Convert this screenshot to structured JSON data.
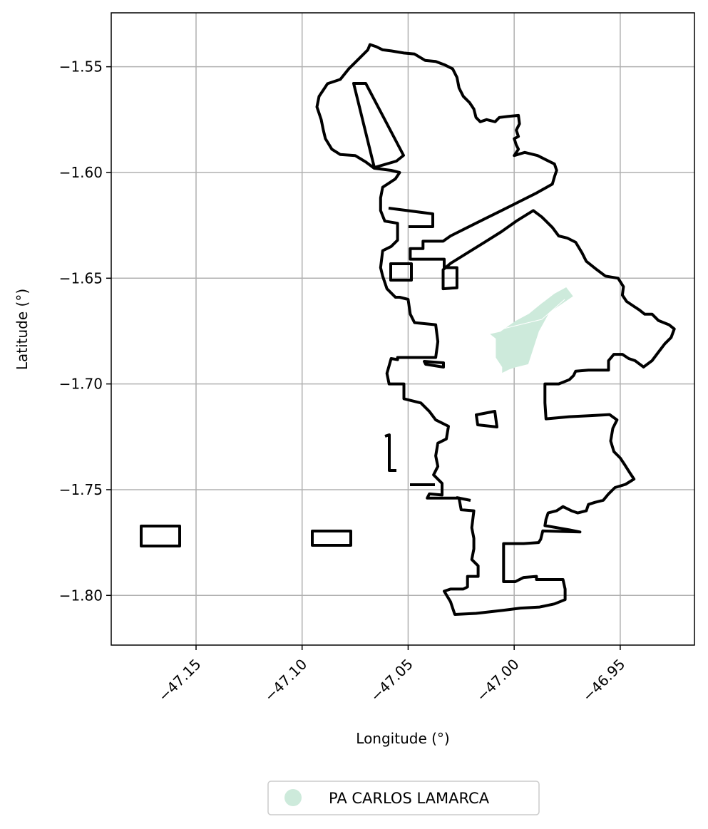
{
  "map": {
    "xlabel": "Longitude (°)",
    "ylabel": "Latitude (°)",
    "xlim": [
      -47.19,
      -46.915
    ],
    "ylim": [
      -1.8235,
      -1.5245
    ],
    "grid": true,
    "x_ticks": [
      {
        "value": -47.15,
        "label": "−47.15"
      },
      {
        "value": -47.1,
        "label": "−47.10"
      },
      {
        "value": -47.05,
        "label": "−47.05"
      },
      {
        "value": -47.0,
        "label": "−47.00"
      },
      {
        "value": -46.95,
        "label": "−46.95"
      }
    ],
    "y_ticks": [
      {
        "value": -1.55,
        "label": "−1.55"
      },
      {
        "value": -1.6,
        "label": "−1.60"
      },
      {
        "value": -1.65,
        "label": "−1.65"
      },
      {
        "value": -1.7,
        "label": "−1.70"
      },
      {
        "value": -1.75,
        "label": "−1.75"
      },
      {
        "value": -1.8,
        "label": "−1.80"
      }
    ],
    "legend": {
      "placement": "bottom-center",
      "entries": [
        {
          "label": "PA CARLOS LAMARCA",
          "color": "#cdeadb"
        }
      ]
    },
    "colors": {
      "boundary": "#000000",
      "settlement": "#cdeadb",
      "grid": "#b0b0b0"
    },
    "boundary": [
      [
        -47.068,
        -1.5395
      ],
      [
        -47.065,
        -1.5405
      ],
      [
        -47.062,
        -1.542
      ],
      [
        -47.058,
        -1.5425
      ],
      [
        -47.052,
        -1.5435
      ],
      [
        -47.047,
        -1.544
      ],
      [
        -47.042,
        -1.547
      ],
      [
        -47.037,
        -1.5475
      ],
      [
        -47.033,
        -1.549
      ],
      [
        -47.029,
        -1.551
      ],
      [
        -47.027,
        -1.555
      ],
      [
        -47.026,
        -1.56
      ],
      [
        -47.024,
        -1.564
      ],
      [
        -47.021,
        -1.567
      ],
      [
        -47.019,
        -1.57
      ],
      [
        -47.018,
        -1.574
      ],
      [
        -47.016,
        -1.576
      ],
      [
        -47.013,
        -1.575
      ],
      [
        -47.009,
        -1.576
      ],
      [
        -47.007,
        -1.574
      ],
      [
        -47.003,
        -1.5735
      ],
      [
        -46.998,
        -1.573
      ],
      [
        -46.9975,
        -1.577
      ],
      [
        -46.999,
        -1.58
      ],
      [
        -46.998,
        -1.583
      ],
      [
        -47.0,
        -1.584
      ],
      [
        -46.999,
        -1.587
      ],
      [
        -46.998,
        -1.589
      ],
      [
        -47.0,
        -1.592
      ],
      [
        -46.995,
        -1.5905
      ],
      [
        -46.989,
        -1.592
      ],
      [
        -46.985,
        -1.594
      ],
      [
        -46.981,
        -1.596
      ],
      [
        -46.98,
        -1.599
      ],
      [
        -46.981,
        -1.602
      ],
      [
        -46.982,
        -1.6055
      ],
      [
        -46.99,
        -1.61
      ],
      [
        -46.998,
        -1.614
      ],
      [
        -47.006,
        -1.618
      ],
      [
        -47.014,
        -1.622
      ],
      [
        -47.022,
        -1.626
      ],
      [
        -47.03,
        -1.63
      ],
      [
        -47.0335,
        -1.6325
      ],
      [
        -47.043,
        -1.6325
      ],
      [
        -47.043,
        -1.636
      ],
      [
        -47.049,
        -1.636
      ],
      [
        -47.049,
        -1.641
      ],
      [
        -47.033,
        -1.641
      ],
      [
        -47.033,
        -1.645
      ],
      [
        -47.027,
        -1.645
      ],
      [
        -47.027,
        -1.6545
      ],
      [
        -47.0335,
        -1.655
      ],
      [
        -47.0335,
        -1.646
      ],
      [
        -47.03,
        -1.643
      ],
      [
        -47.022,
        -1.638
      ],
      [
        -47.014,
        -1.633
      ],
      [
        -47.006,
        -1.628
      ],
      [
        -46.999,
        -1.623
      ],
      [
        -46.991,
        -1.618
      ],
      [
        -46.987,
        -1.621
      ],
      [
        -46.985,
        -1.623
      ],
      [
        -46.982,
        -1.626
      ],
      [
        -46.979,
        -1.63
      ],
      [
        -46.975,
        -1.631
      ],
      [
        -46.971,
        -1.633
      ],
      [
        -46.968,
        -1.638
      ],
      [
        -46.966,
        -1.642
      ],
      [
        -46.961,
        -1.646
      ],
      [
        -46.957,
        -1.649
      ],
      [
        -46.951,
        -1.65
      ],
      [
        -46.9485,
        -1.654
      ],
      [
        -46.949,
        -1.658
      ],
      [
        -46.947,
        -1.661
      ],
      [
        -46.944,
        -1.663
      ],
      [
        -46.941,
        -1.665
      ],
      [
        -46.9385,
        -1.667
      ],
      [
        -46.935,
        -1.667
      ],
      [
        -46.932,
        -1.67
      ],
      [
        -46.927,
        -1.672
      ],
      [
        -46.9245,
        -1.674
      ],
      [
        -46.926,
        -1.678
      ],
      [
        -46.929,
        -1.681
      ],
      [
        -46.932,
        -1.685
      ],
      [
        -46.935,
        -1.689
      ],
      [
        -46.939,
        -1.692
      ],
      [
        -46.943,
        -1.689
      ],
      [
        -46.946,
        -1.688
      ],
      [
        -46.949,
        -1.686
      ],
      [
        -46.953,
        -1.686
      ],
      [
        -46.9555,
        -1.689
      ],
      [
        -46.9555,
        -1.6935
      ],
      [
        -46.965,
        -1.6935
      ],
      [
        -46.971,
        -1.694
      ],
      [
        -46.972,
        -1.696
      ],
      [
        -46.974,
        -1.698
      ],
      [
        -46.979,
        -1.7
      ],
      [
        -46.9855,
        -1.7
      ],
      [
        -46.9855,
        -1.709
      ],
      [
        -46.985,
        -1.7165
      ],
      [
        -46.974,
        -1.7155
      ],
      [
        -46.964,
        -1.715
      ],
      [
        -46.955,
        -1.7145
      ],
      [
        -46.9515,
        -1.717
      ],
      [
        -46.9535,
        -1.721
      ],
      [
        -46.9545,
        -1.727
      ],
      [
        -46.953,
        -1.732
      ],
      [
        -46.95,
        -1.735
      ],
      [
        -46.948,
        -1.738
      ],
      [
        -46.9455,
        -1.742
      ],
      [
        -46.9435,
        -1.745
      ],
      [
        -46.9475,
        -1.7475
      ],
      [
        -46.9525,
        -1.749
      ],
      [
        -46.9555,
        -1.752
      ],
      [
        -46.958,
        -1.755
      ],
      [
        -46.962,
        -1.756
      ],
      [
        -46.965,
        -1.757
      ],
      [
        -46.966,
        -1.76
      ],
      [
        -46.97,
        -1.761
      ],
      [
        -46.973,
        -1.76
      ],
      [
        -46.977,
        -1.758
      ],
      [
        -46.98,
        -1.76
      ],
      [
        -46.984,
        -1.761
      ],
      [
        -46.985,
        -1.764
      ],
      [
        -46.9855,
        -1.767
      ],
      [
        -46.974,
        -1.769
      ],
      [
        -46.969,
        -1.77
      ],
      [
        -46.9865,
        -1.7695
      ],
      [
        -46.9875,
        -1.7735
      ],
      [
        -46.9885,
        -1.775
      ],
      [
        -46.9955,
        -1.7755
      ],
      [
        -47.005,
        -1.7755
      ],
      [
        -47.005,
        -1.7935
      ],
      [
        -46.9995,
        -1.7935
      ],
      [
        -46.9955,
        -1.7915
      ],
      [
        -46.9895,
        -1.791
      ],
      [
        -46.9895,
        -1.7925
      ],
      [
        -46.977,
        -1.7925
      ],
      [
        -46.976,
        -1.797
      ],
      [
        -46.976,
        -1.802
      ],
      [
        -46.981,
        -1.804
      ],
      [
        -46.988,
        -1.8055
      ],
      [
        -46.997,
        -1.806
      ],
      [
        -47.005,
        -1.807
      ],
      [
        -47.018,
        -1.8085
      ],
      [
        -47.028,
        -1.809
      ],
      [
        -47.03,
        -1.803
      ],
      [
        -47.033,
        -1.798
      ],
      [
        -47.03,
        -1.797
      ],
      [
        -47.024,
        -1.797
      ],
      [
        -47.022,
        -1.796
      ],
      [
        -47.022,
        -1.791
      ],
      [
        -47.017,
        -1.791
      ],
      [
        -47.017,
        -1.786
      ],
      [
        -47.02,
        -1.783
      ],
      [
        -47.019,
        -1.778
      ],
      [
        -47.019,
        -1.773
      ],
      [
        -47.02,
        -1.768
      ],
      [
        -47.019,
        -1.76
      ],
      [
        -47.025,
        -1.7595
      ],
      [
        -47.026,
        -1.754
      ],
      [
        -47.041,
        -1.754
      ],
      [
        -47.04,
        -1.752
      ],
      [
        -47.034,
        -1.7525
      ],
      [
        -47.034,
        -1.747
      ],
      [
        -47.038,
        -1.743
      ],
      [
        -47.036,
        -1.739
      ],
      [
        -47.037,
        -1.734
      ],
      [
        -47.036,
        -1.728
      ],
      [
        -47.032,
        -1.726
      ],
      [
        -47.031,
        -1.72
      ],
      [
        -47.037,
        -1.717
      ],
      [
        -47.04,
        -1.713
      ],
      [
        -47.044,
        -1.709
      ],
      [
        -47.052,
        -1.707
      ],
      [
        -47.052,
        -1.7
      ],
      [
        -47.059,
        -1.7
      ],
      [
        -47.06,
        -1.695
      ],
      [
        -47.058,
        -1.688
      ],
      [
        -47.055,
        -1.6885
      ],
      [
        -47.055,
        -1.6875
      ],
      [
        -47.037,
        -1.6875
      ],
      [
        -47.036,
        -1.68
      ],
      [
        -47.037,
        -1.672
      ],
      [
        -47.047,
        -1.671
      ],
      [
        -47.049,
        -1.667
      ],
      [
        -47.05,
        -1.66
      ],
      [
        -47.054,
        -1.659
      ],
      [
        -47.056,
        -1.659
      ],
      [
        -47.06,
        -1.655
      ],
      [
        -47.062,
        -1.649
      ],
      [
        -47.063,
        -1.645
      ],
      [
        -47.062,
        -1.637
      ],
      [
        -47.058,
        -1.635
      ],
      [
        -47.055,
        -1.632
      ],
      [
        -47.055,
        -1.624
      ],
      [
        -47.061,
        -1.623
      ],
      [
        -47.063,
        -1.618
      ],
      [
        -47.063,
        -1.612
      ],
      [
        -47.062,
        -1.607
      ],
      [
        -47.059,
        -1.605
      ],
      [
        -47.056,
        -1.603
      ],
      [
        -47.054,
        -1.6
      ],
      [
        -47.058,
        -1.599
      ],
      [
        -47.066,
        -1.598
      ],
      [
        -47.07,
        -1.595
      ],
      [
        -47.075,
        -1.592
      ],
      [
        -47.082,
        -1.5915
      ],
      [
        -47.086,
        -1.589
      ],
      [
        -47.089,
        -1.584
      ],
      [
        -47.09,
        -1.58
      ],
      [
        -47.091,
        -1.575
      ],
      [
        -47.093,
        -1.569
      ],
      [
        -47.092,
        -1.564
      ],
      [
        -47.088,
        -1.558
      ],
      [
        -47.082,
        -1.556
      ],
      [
        -47.078,
        -1.551
      ],
      [
        -47.075,
        -1.548
      ],
      [
        -47.072,
        -1.545
      ],
      [
        -47.069,
        -1.542
      ]
    ],
    "settlement": [
      [
        -46.9755,
        -1.6545
      ],
      [
        -46.9725,
        -1.6585
      ],
      [
        -46.9835,
        -1.666
      ],
      [
        -46.9885,
        -1.675
      ],
      [
        -46.9935,
        -1.6905
      ],
      [
        -46.9995,
        -1.692
      ],
      [
        -47.0025,
        -1.693
      ],
      [
        -47.0055,
        -1.6945
      ],
      [
        -47.0055,
        -1.692
      ],
      [
        -47.0085,
        -1.6875
      ],
      [
        -47.0085,
        -1.6785
      ],
      [
        -47.011,
        -1.6765
      ],
      [
        -47.0065,
        -1.6755
      ],
      [
        -46.9995,
        -1.6705
      ],
      [
        -46.993,
        -1.667
      ],
      [
        -46.9875,
        -1.6625
      ],
      [
        -46.981,
        -1.6575
      ]
    ]
  }
}
